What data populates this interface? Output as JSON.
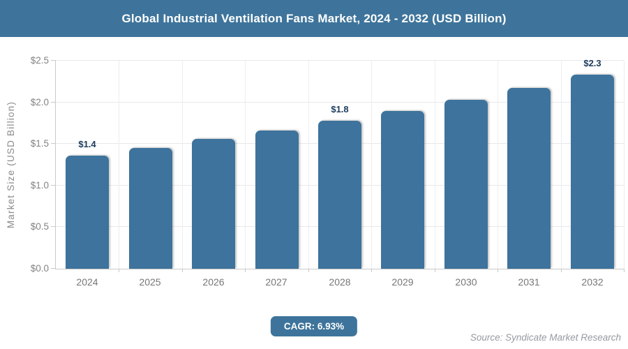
{
  "header": {
    "title": "Global Industrial Ventilation Fans Market, 2024 - 2032 (USD Billion)"
  },
  "chart_data": {
    "type": "bar",
    "title": "Global Industrial Ventilation Fans Market, 2024 - 2032 (USD Billion)",
    "categories": [
      "2024",
      "2025",
      "2026",
      "2027",
      "2028",
      "2029",
      "2030",
      "2031",
      "2032"
    ],
    "values": [
      1.36,
      1.45,
      1.56,
      1.66,
      1.78,
      1.9,
      2.03,
      2.17,
      2.33
    ],
    "point_labels": [
      "$1.4",
      "",
      "",
      "",
      "$1.8",
      "",
      "",
      "",
      "$2.3"
    ],
    "xlabel": "",
    "ylabel": "Market Size (USD Billion)",
    "ylim": [
      0,
      2.5
    ],
    "yticks": [
      "$0.0",
      "$0.5",
      "$1.0",
      "$1.5",
      "$2.0",
      "$2.5"
    ],
    "grid": true,
    "legend": "none",
    "bar_color": "#3d739c",
    "accent_color": "#3e749b",
    "value_label_color": "#1b3a5c"
  },
  "footer": {
    "cagr_label": "CAGR: 6.93%",
    "source": "Source: Syndicate Market Research"
  }
}
